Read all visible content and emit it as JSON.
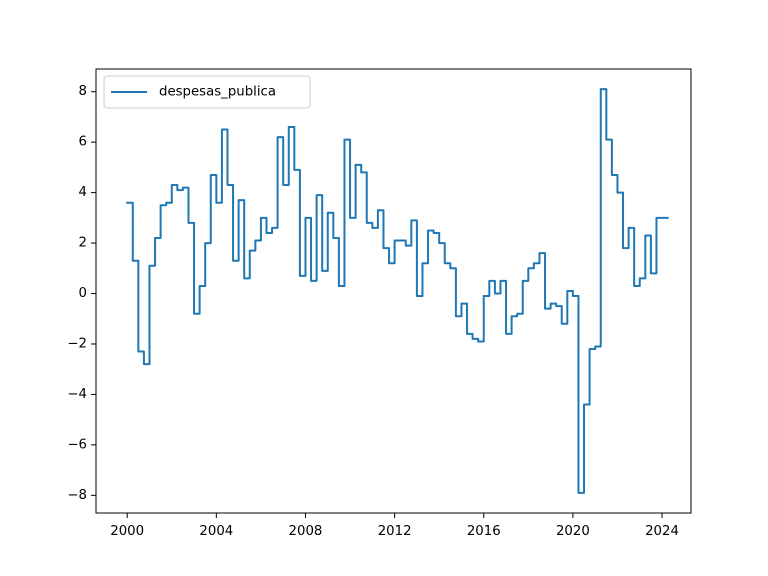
{
  "chart_data": {
    "type": "line",
    "title": "",
    "xlabel": "",
    "ylabel": "",
    "xlim": [
      1998.6,
      2025.3
    ],
    "ylim": [
      -8.7,
      8.9
    ],
    "x_ticks": [
      2000,
      2004,
      2008,
      2012,
      2016,
      2020,
      2024
    ],
    "x_tick_labels": [
      "2000",
      "2004",
      "2008",
      "2012",
      "2016",
      "2020",
      "2024"
    ],
    "y_ticks": [
      -8,
      -6,
      -4,
      -2,
      0,
      2,
      4,
      6,
      8
    ],
    "y_tick_labels": [
      "−8",
      "−6",
      "−4",
      "−2",
      "0",
      "2",
      "4",
      "6",
      "8"
    ],
    "grid": false,
    "legend": {
      "position": "top-left"
    },
    "colors": {
      "series": "#1f77b4",
      "axes": "#000000",
      "background": "#ffffff"
    },
    "series": [
      {
        "name": "despesas_publica",
        "x": [
          2000.0,
          2000.25,
          2000.25,
          2000.5,
          2000.5,
          2000.75,
          2000.75,
          2001.0,
          2001.0,
          2001.25,
          2001.25,
          2001.5,
          2001.5,
          2001.75,
          2001.75,
          2002.0,
          2002.0,
          2002.25,
          2002.25,
          2002.5,
          2002.5,
          2002.75,
          2002.75,
          2003.0,
          2003.0,
          2003.25,
          2003.25,
          2003.5,
          2003.5,
          2003.75,
          2003.75,
          2004.0,
          2004.0,
          2004.25,
          2004.25,
          2004.5,
          2004.5,
          2004.75,
          2004.75,
          2005.0,
          2005.0,
          2005.25,
          2005.25,
          2005.5,
          2005.5,
          2005.75,
          2005.75,
          2006.0,
          2006.0,
          2006.25,
          2006.25,
          2006.5,
          2006.5,
          2006.75,
          2006.75,
          2007.0,
          2007.0,
          2007.25,
          2007.25,
          2007.5,
          2007.5,
          2007.75,
          2007.75,
          2008.0,
          2008.0,
          2008.25,
          2008.25,
          2008.5,
          2008.5,
          2008.75,
          2008.75,
          2009.0,
          2009.0,
          2009.25,
          2009.25,
          2009.5,
          2009.5,
          2009.75,
          2009.75,
          2010.0,
          2010.0,
          2010.25,
          2010.25,
          2010.5,
          2010.5,
          2010.75,
          2010.75,
          2011.0,
          2011.0,
          2011.25,
          2011.25,
          2011.5,
          2011.5,
          2011.75,
          2011.75,
          2012.0,
          2012.0,
          2012.25,
          2012.25,
          2012.5,
          2012.5,
          2012.75,
          2012.75,
          2013.0,
          2013.0,
          2013.25,
          2013.25,
          2013.5,
          2013.5,
          2013.75,
          2013.75,
          2014.0,
          2014.0,
          2014.25,
          2014.25,
          2014.5,
          2014.5,
          2014.75,
          2014.75,
          2015.0,
          2015.0,
          2015.25,
          2015.25,
          2015.5,
          2015.5,
          2015.75,
          2015.75,
          2016.0,
          2016.0,
          2016.25,
          2016.25,
          2016.5,
          2016.5,
          2016.75,
          2016.75,
          2017.0,
          2017.0,
          2017.25,
          2017.25,
          2017.5,
          2017.5,
          2017.75,
          2017.75,
          2018.0,
          2018.0,
          2018.25,
          2018.25,
          2018.5,
          2018.5,
          2018.75,
          2018.75,
          2019.0,
          2019.0,
          2019.25,
          2019.25,
          2019.5,
          2019.5,
          2019.75,
          2019.75,
          2020.0,
          2020.0,
          2020.25,
          2020.25,
          2020.5,
          2020.5,
          2020.75,
          2020.75,
          2021.0,
          2021.0,
          2021.25,
          2021.25,
          2021.5,
          2021.5,
          2021.75,
          2021.75,
          2022.0,
          2022.0,
          2022.25,
          2022.25,
          2022.5,
          2022.5,
          2022.75,
          2022.75,
          2023.0,
          2023.0,
          2023.25,
          2023.25,
          2023.5,
          2023.5,
          2023.75,
          2023.75,
          2024.0,
          2024.0,
          2024.25
        ],
        "y": [
          3.6,
          3.6,
          1.3,
          1.3,
          -2.3,
          -2.3,
          -2.8,
          -2.8,
          1.1,
          1.1,
          2.2,
          2.2,
          3.5,
          3.5,
          3.6,
          3.6,
          4.3,
          4.3,
          4.1,
          4.1,
          4.2,
          4.2,
          2.8,
          2.8,
          -0.8,
          -0.8,
          0.3,
          0.3,
          2.0,
          2.0,
          4.7,
          4.7,
          3.6,
          3.6,
          6.5,
          6.5,
          4.3,
          4.3,
          1.3,
          1.3,
          3.7,
          3.7,
          0.6,
          0.6,
          1.7,
          1.7,
          2.1,
          2.1,
          3.0,
          3.0,
          2.4,
          2.4,
          2.6,
          2.6,
          6.2,
          6.2,
          4.3,
          4.3,
          6.6,
          6.6,
          4.9,
          4.9,
          0.7,
          0.7,
          3.0,
          3.0,
          0.5,
          0.5,
          3.9,
          3.9,
          0.9,
          0.9,
          3.2,
          3.2,
          2.2,
          2.2,
          0.3,
          0.3,
          6.1,
          6.1,
          3.0,
          3.0,
          5.1,
          5.1,
          4.8,
          4.8,
          2.8,
          2.8,
          2.6,
          2.6,
          3.3,
          3.3,
          1.8,
          1.8,
          1.2,
          1.2,
          2.1,
          2.1,
          2.1,
          2.1,
          1.9,
          1.9,
          2.9,
          2.9,
          -0.1,
          -0.1,
          1.2,
          1.2,
          2.5,
          2.5,
          2.4,
          2.4,
          2.0,
          2.0,
          1.2,
          1.2,
          1.0,
          1.0,
          -0.9,
          -0.9,
          -0.4,
          -0.4,
          -1.6,
          -1.6,
          -1.8,
          -1.8,
          -1.9,
          -1.9,
          -0.1,
          -0.1,
          0.5,
          0.5,
          0.0,
          0.0,
          0.5,
          0.5,
          -1.6,
          -1.6,
          -0.9,
          -0.9,
          -0.8,
          -0.8,
          0.5,
          0.5,
          1.0,
          1.0,
          1.2,
          1.2,
          1.6,
          1.6,
          -0.6,
          -0.6,
          -0.4,
          -0.4,
          -0.5,
          -0.5,
          -1.2,
          -1.2,
          0.1,
          0.1,
          -0.1,
          -0.1,
          -7.9,
          -7.9,
          -4.4,
          -4.4,
          -2.2,
          -2.2,
          -2.1,
          -2.1,
          8.1,
          8.1,
          6.1,
          6.1,
          4.7,
          4.7,
          4.0,
          4.0,
          1.8,
          1.8,
          2.6,
          2.6,
          0.3,
          0.3,
          0.6,
          0.6,
          2.3,
          2.3,
          0.8,
          0.8,
          3.0,
          3.0,
          3.0,
          3.0
        ]
      }
    ]
  }
}
